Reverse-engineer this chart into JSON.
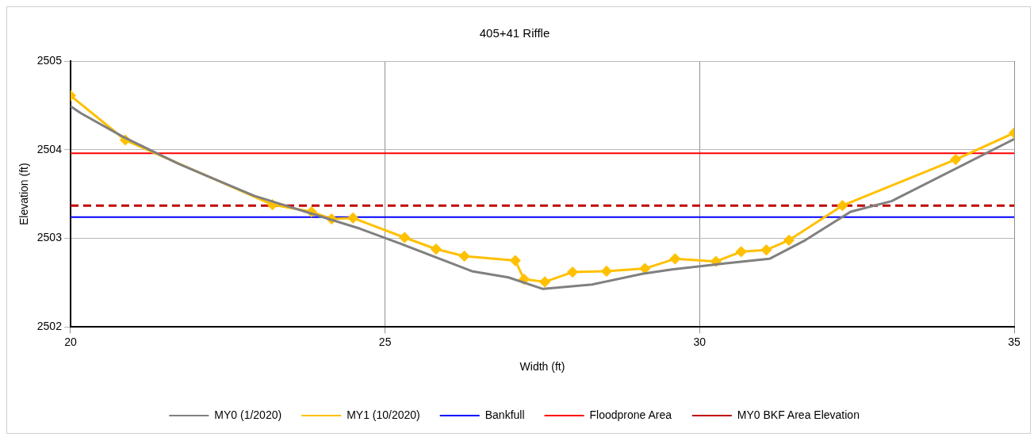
{
  "chart_data": {
    "type": "line",
    "title": "405+41 Riffle",
    "xlabel": "Width (ft)",
    "ylabel": "Elevation (ft)",
    "xlim": [
      20,
      35
    ],
    "xticks": [
      20,
      25,
      30,
      35
    ],
    "ylim": [
      2502,
      2505
    ],
    "yticks": [
      2502,
      2503,
      2504,
      2505
    ],
    "grid": true,
    "legend": "bottom",
    "series": [
      {
        "name": "MY0 (1/2020)",
        "color": "#808080",
        "marker": "none",
        "x": [
          20,
          20.17,
          20.85,
          21.72,
          22.92,
          24.6,
          25.25,
          26.38,
          26.96,
          27.51,
          28.29,
          29.09,
          29.56,
          30.42,
          31.11,
          31.68,
          32.4,
          33.05,
          35
        ],
        "values": [
          2504.49,
          2504.41,
          2504.14,
          2503.84,
          2503.48,
          2503.11,
          2502.94,
          2502.63,
          2502.56,
          2502.43,
          2502.48,
          2502.6,
          2502.65,
          2502.72,
          2502.77,
          2502.98,
          2503.3,
          2503.42,
          2504.12
        ]
      },
      {
        "name": "MY1 (10/2020)",
        "color": "#ffc000",
        "marker": "diamond",
        "x": [
          20,
          20.87,
          23.21,
          23.83,
          24.15,
          24.49,
          25.31,
          25.81,
          26.26,
          27.07,
          27.21,
          27.54,
          27.98,
          28.52,
          29.13,
          29.61,
          30.26,
          30.66,
          31.06,
          31.42,
          32.27,
          34.07,
          35
        ],
        "values": [
          2504.61,
          2504.11,
          2503.38,
          2503.3,
          2503.22,
          2503.23,
          2503.01,
          2502.88,
          2502.8,
          2502.75,
          2502.54,
          2502.51,
          2502.62,
          2502.63,
          2502.66,
          2502.77,
          2502.74,
          2502.85,
          2502.87,
          2502.98,
          2503.37,
          2503.89,
          2504.19
        ]
      }
    ],
    "ref_lines": [
      {
        "axis": "y",
        "value": 2503.24,
        "label": "Bankfull",
        "color": "#0000ff",
        "line_style": "solid"
      },
      {
        "axis": "y",
        "value": 2503.96,
        "label": "Floodprone Area",
        "color": "#ff0000",
        "line_style": "solid"
      },
      {
        "axis": "y",
        "value": 2503.37,
        "label": "MY0 BKF Area Elevation",
        "color": "#c00000",
        "line_style": "dashed"
      }
    ]
  }
}
